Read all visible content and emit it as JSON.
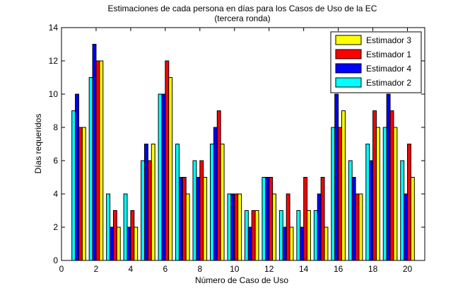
{
  "chart_data": {
    "type": "bar",
    "title": "Estimaciones de cada persona en días para los Casos de Uso de la EC",
    "subtitle": "(tercera ronda)",
    "xlabel": "Número de Caso de Uso",
    "ylabel": "Días requeridos",
    "xlim": [
      0,
      21
    ],
    "ylim": [
      0,
      14
    ],
    "xticks": [
      0,
      2,
      4,
      6,
      8,
      10,
      12,
      14,
      16,
      18,
      20
    ],
    "yticks": [
      0,
      2,
      4,
      6,
      8,
      10,
      12,
      14
    ],
    "grid": false,
    "legend_position": "top-right",
    "categories": [
      1,
      2,
      3,
      4,
      5,
      6,
      7,
      8,
      9,
      10,
      11,
      12,
      13,
      14,
      15,
      16,
      17,
      18,
      19,
      20
    ],
    "series": [
      {
        "name": "Estimador 2",
        "color": "#00ffff",
        "values": [
          9,
          11,
          4,
          4,
          6,
          10,
          7,
          6,
          7,
          4,
          3,
          5,
          3,
          3,
          3,
          8,
          6,
          7,
          8,
          6
        ]
      },
      {
        "name": "Estimador 4",
        "color": "#0000ff",
        "values": [
          10,
          13,
          2,
          2,
          7,
          10,
          5,
          5,
          8,
          4,
          2,
          5,
          2,
          2,
          4,
          10,
          5,
          6,
          10,
          4
        ]
      },
      {
        "name": "Estimador 1",
        "color": "#ff0000",
        "values": [
          8,
          12,
          3,
          3,
          6,
          12,
          5,
          6,
          9,
          4,
          3,
          5,
          4,
          5,
          5,
          8,
          4,
          9,
          9,
          7
        ]
      },
      {
        "name": "Estimador 3",
        "color": "#ffff00",
        "values": [
          8,
          12,
          2,
          2,
          7,
          11,
          4,
          5,
          7,
          4,
          3,
          4,
          2,
          3,
          2,
          9,
          4,
          8,
          8,
          5
        ]
      }
    ],
    "legend_order": [
      "Estimador 3",
      "Estimador 1",
      "Estimador 4",
      "Estimador 2"
    ]
  }
}
